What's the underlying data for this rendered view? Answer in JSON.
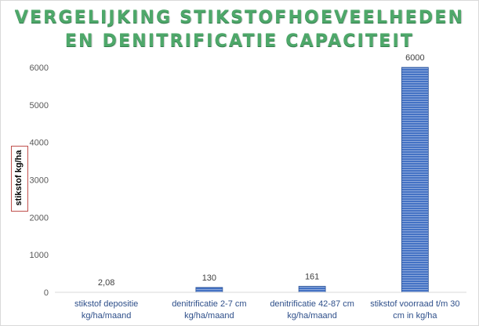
{
  "chart_data": {
    "type": "bar",
    "title_lines": [
      "VERGELIJKING STIKSTOFHOEVEELHEDEN",
      "EN DENITRIFICATIE CAPACITEIT"
    ],
    "ylabel": "stikstof kg/ha",
    "xlabel": "",
    "ylim": [
      0,
      6000
    ],
    "yticks": [
      0,
      1000,
      2000,
      3000,
      4000,
      5000,
      6000
    ],
    "grid": false,
    "categories": [
      [
        "stikstof depositie",
        "kg/ha/maand"
      ],
      [
        "denitrificatie 2-7 cm",
        "kg/ha/maand"
      ],
      [
        "denitrificatie 42-87 cm",
        "kg/ha/maand"
      ],
      [
        "stikstof voorraad t/m 30",
        "cm in kg/ha"
      ]
    ],
    "values": [
      2.08,
      130,
      161,
      6000
    ],
    "data_labels": [
      "2,08",
      "130",
      "161",
      "6000"
    ],
    "colors": {
      "bar_fill": "#4472c4",
      "bar_stripe": "#8faadc",
      "title": "#4ea86a",
      "ylabel_border": "#c0504d"
    }
  }
}
